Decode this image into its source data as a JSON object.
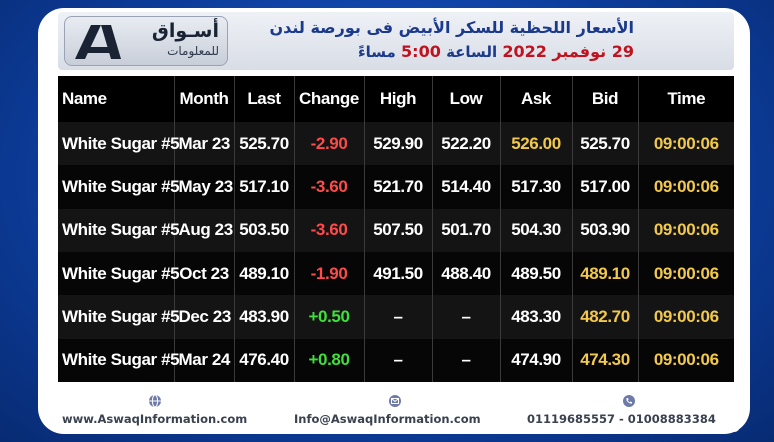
{
  "header": {
    "logo_name": "أسـواق",
    "logo_sub": "للمعلومات",
    "title_line1": "الأسعار اللحظية للسكر الأبيض فى بورصة لندن",
    "date": "29 نوفمبر 2022",
    "time_label": "الساعة",
    "time_value": "5:00",
    "period": "مساءً"
  },
  "table": {
    "columns": [
      "Name",
      "Month",
      "Last",
      "Change",
      "High",
      "Low",
      "Ask",
      "Bid",
      "Time"
    ],
    "rows": [
      {
        "name": "White Sugar #5",
        "month": "Mar 23",
        "last": "525.70",
        "change": "-2.90",
        "high": "529.90",
        "low": "522.20",
        "ask": "526.00",
        "bid": "525.70",
        "time": "09:00:06"
      },
      {
        "name": "White Sugar #5",
        "month": "May 23",
        "last": "517.10",
        "change": "-3.60",
        "high": "521.70",
        "low": "514.40",
        "ask": "517.30",
        "bid": "517.00",
        "time": "09:00:06"
      },
      {
        "name": "White Sugar #5",
        "month": "Aug 23",
        "last": "503.50",
        "change": "-3.60",
        "high": "507.50",
        "low": "501.70",
        "ask": "504.30",
        "bid": "503.90",
        "time": "09:00:06"
      },
      {
        "name": "White Sugar #5",
        "month": "Oct 23",
        "last": "489.10",
        "change": "-1.90",
        "high": "491.50",
        "low": "488.40",
        "ask": "489.50",
        "bid": "489.10",
        "time": "09:00:06"
      },
      {
        "name": "White Sugar #5",
        "month": "Dec 23",
        "last": "483.90",
        "change": "+0.50",
        "high": "–",
        "low": "–",
        "ask": "483.30",
        "bid": "482.70",
        "time": "09:00:06"
      },
      {
        "name": "White Sugar #5",
        "month": "Mar 24",
        "last": "476.40",
        "change": "+0.80",
        "high": "–",
        "low": "–",
        "ask": "474.90",
        "bid": "474.30",
        "time": "09:00:06"
      }
    ]
  },
  "footer": {
    "website": "www.AswaqInformation.com",
    "email": "Info@AswaqInformation.com",
    "phones": "01119685557 - 01008883384"
  },
  "colors": {
    "negative": "#ff4a4a",
    "positive": "#3fe03a",
    "highlight": "#f2c94c",
    "brand_blue": "#1b3a8c"
  }
}
